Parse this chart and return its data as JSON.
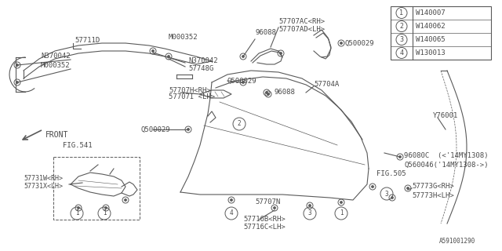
{
  "bg_color": "#ffffff",
  "line_color": "#5a5a5a",
  "text_color": "#4a4a4a",
  "fig_width": 6.4,
  "fig_height": 3.2,
  "legend_items": [
    {
      "num": "1",
      "code": "W140007"
    },
    {
      "num": "2",
      "code": "W140062"
    },
    {
      "num": "3",
      "code": "W140065"
    },
    {
      "num": "4",
      "code": "W130013"
    }
  ]
}
